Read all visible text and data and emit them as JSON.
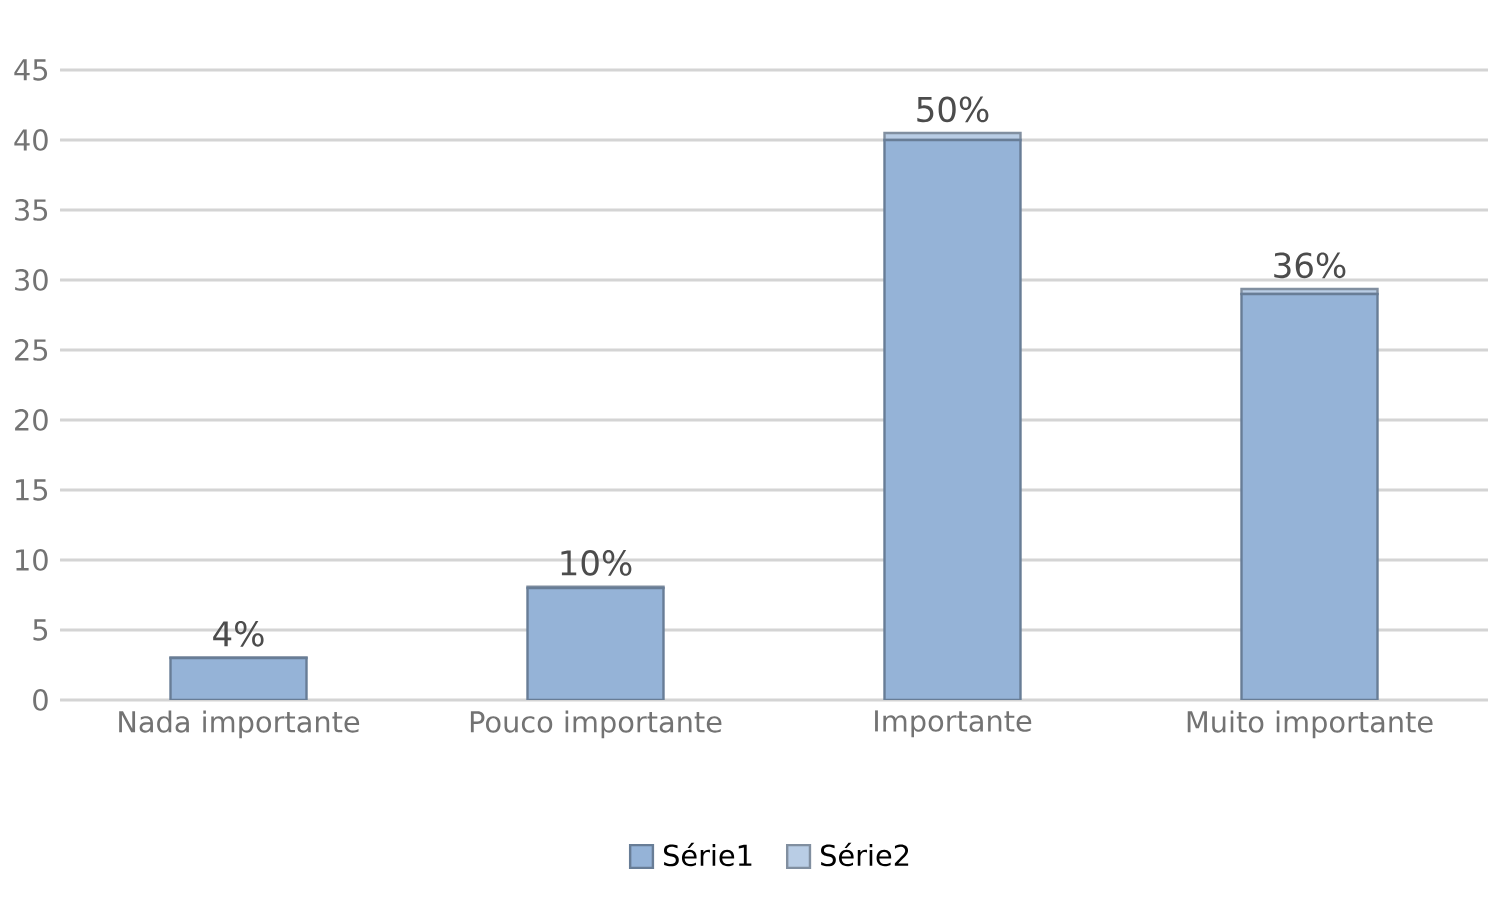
{
  "chart_data": {
    "type": "bar",
    "stacked": true,
    "categories": [
      "Nada importante",
      "Pouco importante",
      "Importante",
      "Muito importante"
    ],
    "series": [
      {
        "name": "Série1",
        "color": "#95b3d7",
        "values": [
          3,
          8,
          40,
          29
        ]
      },
      {
        "name": "Série2",
        "color": "#b9cde5",
        "values": [
          0.04,
          0.1,
          0.5,
          0.36
        ],
        "value_labels": [
          "4%",
          "10%",
          "50%",
          "36%"
        ]
      }
    ],
    "ylim": [
      0,
      45
    ],
    "yticks": [
      0,
      5,
      10,
      15,
      20,
      25,
      30,
      35,
      40,
      45
    ],
    "grid": "y",
    "legend": "bottom"
  }
}
